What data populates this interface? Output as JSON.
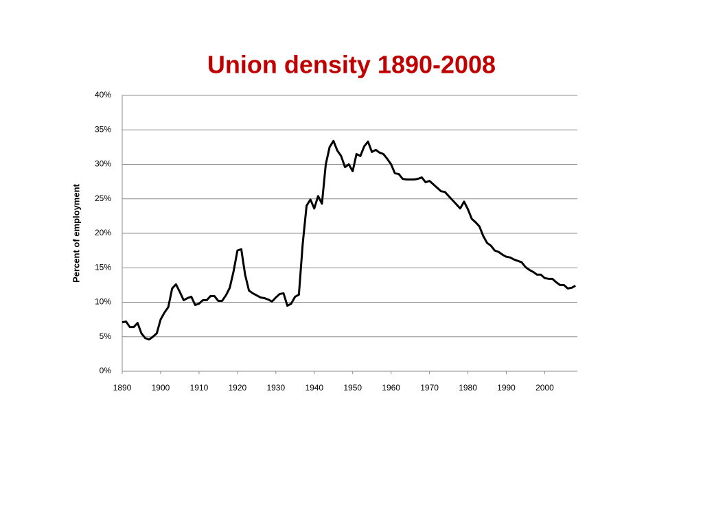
{
  "chart_data": {
    "type": "line",
    "title": "Union density 1890-2008",
    "y_label": "Percent of employment",
    "x": [
      1890,
      1891,
      1892,
      1893,
      1894,
      1895,
      1896,
      1897,
      1898,
      1899,
      1900,
      1901,
      1902,
      1903,
      1904,
      1905,
      1906,
      1907,
      1908,
      1909,
      1910,
      1911,
      1912,
      1913,
      1914,
      1915,
      1916,
      1917,
      1918,
      1919,
      1920,
      1921,
      1922,
      1923,
      1924,
      1925,
      1926,
      1927,
      1928,
      1929,
      1930,
      1931,
      1932,
      1933,
      1934,
      1935,
      1936,
      1937,
      1938,
      1939,
      1940,
      1941,
      1942,
      1943,
      1944,
      1945,
      1946,
      1947,
      1948,
      1949,
      1950,
      1951,
      1952,
      1953,
      1954,
      1955,
      1956,
      1957,
      1958,
      1959,
      1960,
      1961,
      1962,
      1963,
      1964,
      1965,
      1966,
      1967,
      1968,
      1969,
      1970,
      1971,
      1972,
      1973,
      1974,
      1975,
      1976,
      1977,
      1978,
      1979,
      1980,
      1981,
      1982,
      1983,
      1984,
      1985,
      1986,
      1987,
      1988,
      1989,
      1990,
      1991,
      1992,
      1993,
      1994,
      1995,
      1996,
      1997,
      1998,
      1999,
      2000,
      2001,
      2002,
      2003,
      2004,
      2005,
      2006,
      2007,
      2008
    ],
    "series": [
      {
        "color": "#000000",
        "values": [
          7.1,
          7.2,
          6.4,
          6.4,
          7.0,
          5.5,
          4.8,
          4.6,
          5.0,
          5.5,
          7.5,
          8.5,
          9.3,
          12.0,
          12.6,
          11.5,
          10.3,
          10.6,
          10.8,
          9.6,
          9.8,
          10.3,
          10.3,
          10.9,
          10.9,
          10.2,
          10.2,
          11.0,
          12.1,
          14.5,
          17.5,
          17.7,
          14.0,
          11.7,
          11.3,
          11.0,
          10.7,
          10.6,
          10.4,
          10.1,
          10.7,
          11.2,
          11.3,
          9.5,
          9.8,
          10.8,
          11.1,
          18.5,
          24.0,
          24.9,
          23.6,
          25.4,
          24.3,
          30.0,
          32.5,
          33.4,
          32.0,
          31.2,
          29.6,
          30.0,
          29.0,
          31.5,
          31.2,
          32.6,
          33.3,
          31.8,
          32.1,
          31.7,
          31.5,
          30.8,
          30.0,
          28.7,
          28.6,
          27.9,
          27.8,
          27.8,
          27.8,
          27.9,
          28.1,
          27.4,
          27.6,
          27.1,
          26.6,
          26.1,
          26.0,
          25.4,
          24.8,
          24.2,
          23.6,
          24.6,
          23.5,
          22.1,
          21.6,
          21.0,
          19.6,
          18.6,
          18.2,
          17.5,
          17.3,
          16.9,
          16.6,
          16.5,
          16.2,
          16.0,
          15.8,
          15.1,
          14.7,
          14.4,
          14.0,
          14.0,
          13.5,
          13.4,
          13.4,
          12.9,
          12.5,
          12.5,
          12.0,
          12.1,
          12.4
        ]
      }
    ],
    "xlim": [
      1890,
      2008.5
    ],
    "xticks": [
      1890,
      1900,
      1910,
      1920,
      1930,
      1940,
      1950,
      1960,
      1970,
      1980,
      1990,
      2000
    ],
    "ylim": [
      0,
      40
    ],
    "yticks": [
      {
        "value": 0,
        "label": "0%"
      },
      {
        "value": 5,
        "label": "5%"
      },
      {
        "value": 10,
        "label": "10%"
      },
      {
        "value": 15,
        "label": "15%"
      },
      {
        "value": 20,
        "label": "20%"
      },
      {
        "value": 25,
        "label": "25%"
      },
      {
        "value": 30,
        "label": "30%"
      },
      {
        "value": 35,
        "label": "35%"
      },
      {
        "value": 40,
        "label": "40%"
      }
    ],
    "grid": true
  }
}
